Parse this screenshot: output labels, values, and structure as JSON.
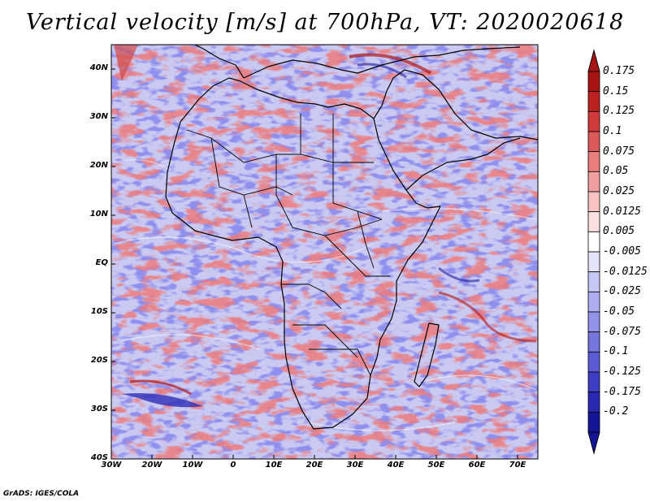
{
  "title": "Vertical velocity [m/s] at 700hPa, VT: 2020020618",
  "credit": "GrADS: IGES/COLA",
  "map": {
    "projection": "latlon",
    "lon_range": [
      -30,
      75
    ],
    "lat_range": [
      -40,
      45
    ],
    "lat_ticks": [
      {
        "lat": 40,
        "label": "40N"
      },
      {
        "lat": 30,
        "label": "30N"
      },
      {
        "lat": 20,
        "label": "20N"
      },
      {
        "lat": 10,
        "label": "10N"
      },
      {
        "lat": 0,
        "label": "EQ"
      },
      {
        "lat": -10,
        "label": "10S"
      },
      {
        "lat": -20,
        "label": "20S"
      },
      {
        "lat": -30,
        "label": "30S"
      },
      {
        "lat": -40,
        "label": "40S"
      }
    ],
    "lon_ticks": [
      {
        "lon": -30,
        "label": "30W"
      },
      {
        "lon": -20,
        "label": "20W"
      },
      {
        "lon": -10,
        "label": "10W"
      },
      {
        "lon": 0,
        "label": "0"
      },
      {
        "lon": 10,
        "label": "10E"
      },
      {
        "lon": 20,
        "label": "20E"
      },
      {
        "lon": 30,
        "label": "30E"
      },
      {
        "lon": 40,
        "label": "40E"
      },
      {
        "lon": 50,
        "label": "50E"
      },
      {
        "lon": 60,
        "label": "60E"
      },
      {
        "lon": 70,
        "label": "70E"
      }
    ]
  },
  "colorbar": {
    "levels": [
      "0.175",
      "0.15",
      "0.125",
      "0.1",
      "0.075",
      "0.05",
      "0.025",
      "0.0125",
      "0.005",
      "-0.005",
      "-0.0125",
      "-0.025",
      "-0.05",
      "-0.075",
      "-0.1",
      "-0.125",
      "-0.175",
      "-0.2"
    ],
    "colors": [
      "#a81414",
      "#bd2222",
      "#cf3a3a",
      "#de5a5a",
      "#e87e7e",
      "#f0a0a0",
      "#f6c2c2",
      "#fbe0e0",
      "#ffffff",
      "#e4e4fb",
      "#c8c8f6",
      "#aeaef0",
      "#9292e8",
      "#7676de",
      "#5a5ad2",
      "#3e3ec4",
      "#2828b0",
      "#141496"
    ]
  }
}
